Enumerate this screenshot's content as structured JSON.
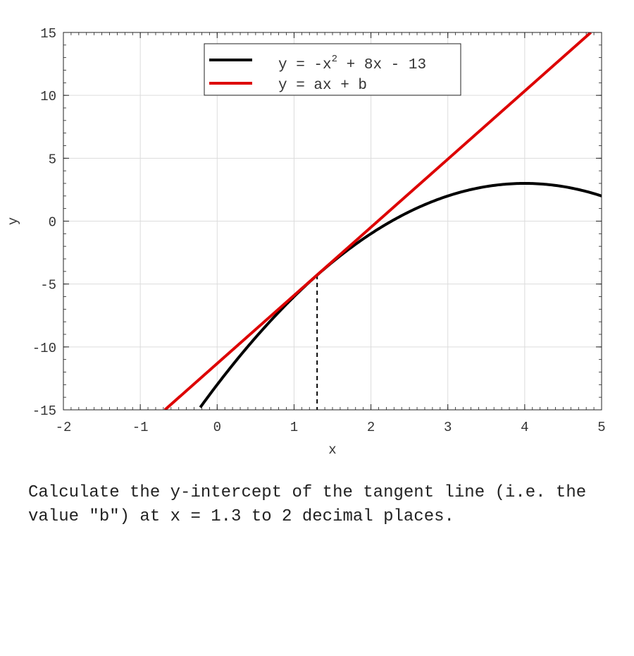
{
  "chart_data": {
    "type": "line",
    "xlabel": "x",
    "ylabel": "y",
    "xlim": [
      -2,
      5
    ],
    "ylim": [
      -15,
      15
    ],
    "xticks": [
      "-2",
      "-1",
      "0",
      "1",
      "2",
      "3",
      "4",
      "5"
    ],
    "yticks": [
      "-15",
      "-10",
      "-5",
      "0",
      "5",
      "10",
      "15"
    ],
    "grid": true,
    "legend_position": "top-center",
    "series": [
      {
        "name": "y = -x² + 8x - 13",
        "legend_main": "y = -x",
        "legend_sup": "2",
        "legend_rest": " + 8x - 13",
        "color": "#000000",
        "function": "-x^2 + 8x - 13",
        "x": [
          -0.22,
          0,
          0.5,
          1,
          1.3,
          1.5,
          2,
          2.5,
          3,
          3.5,
          4,
          4.5,
          5
        ],
        "y": [
          -14.81,
          -13,
          -9.25,
          -6,
          -4.29,
          -3.25,
          -1,
          0.75,
          2,
          2.75,
          3,
          2.75,
          2
        ]
      },
      {
        "name": "y = ax + b",
        "color": "#dd0000",
        "x": [
          -0.68,
          4.86
        ],
        "y": [
          -15,
          15
        ]
      }
    ],
    "marker": {
      "x": 1.3,
      "y": -4.29,
      "style": "dashed"
    }
  },
  "question": "Calculate the y-intercept of the tangent line (i.e. the value \"b\") at x = 1.3 to 2 decimal places."
}
